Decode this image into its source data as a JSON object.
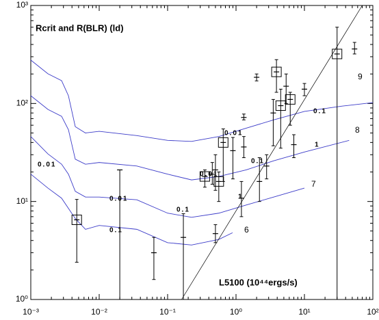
{
  "chart_data": {
    "type": "scatter",
    "title": "Rcrit and R(BLR) (ld)",
    "xlabel": "L5100  (10⁴⁴ergs/s)",
    "log_x": true,
    "log_y": true,
    "xlim": [
      0.001,
      100
    ],
    "ylim": [
      1,
      1000
    ],
    "xticks": [
      {
        "value": 0.001,
        "label": "10⁻³"
      },
      {
        "value": 0.01,
        "label": "10⁻²"
      },
      {
        "value": 0.1,
        "label": "10⁻¹"
      },
      {
        "value": 1,
        "label": "10⁰"
      },
      {
        "value": 10,
        "label": "10¹"
      },
      {
        "value": 100,
        "label": "10²"
      }
    ],
    "yticks": [
      {
        "value": 1,
        "label": "10⁰"
      },
      {
        "value": 10,
        "label": "10¹"
      },
      {
        "value": 100,
        "label": "10²"
      },
      {
        "value": 1000,
        "label": "10³"
      }
    ],
    "points": {
      "x": [
        0.0047,
        0.02,
        0.063,
        0.17,
        0.5,
        0.35,
        0.45,
        0.56,
        0.65,
        0.5,
        0.9,
        1.3,
        1.2,
        1.3,
        2.2,
        2.8,
        3.5,
        2,
        3.9,
        4.5,
        5.4,
        6.2,
        10,
        7,
        30,
        54
      ],
      "y": [
        6.5,
        21,
        3.0,
        4.3,
        4.7,
        18,
        19,
        16,
        40,
        21,
        33,
        36,
        10.8,
        72,
        16,
        23,
        80,
        185,
        210,
        95,
        150,
        110,
        140,
        38,
        320,
        360
      ],
      "y_low": [
        2.4,
        1,
        1.6,
        1,
        3.8,
        14,
        15,
        10,
        16,
        13,
        17,
        28,
        7,
        68,
        10,
        17,
        37,
        170,
        130,
        35,
        100,
        60,
        120,
        28,
        1,
        320
      ],
      "y_high": [
        10.5,
        21,
        4.3,
        7.5,
        5.8,
        21,
        25,
        20,
        55,
        30,
        45,
        46,
        16,
        78,
        28,
        30,
        110,
        200,
        280,
        140,
        200,
        130,
        160,
        48,
        600,
        420
      ],
      "boxed": [
        true,
        false,
        false,
        false,
        false,
        true,
        false,
        true,
        true,
        false,
        false,
        false,
        false,
        false,
        false,
        false,
        false,
        false,
        true,
        true,
        false,
        true,
        false,
        false,
        true,
        false
      ],
      "color": "#000000"
    },
    "reference_line": {
      "x": [
        0.16,
        70
      ],
      "y": [
        1,
        1000
      ],
      "color": "#000000"
    },
    "curves": [
      {
        "name": "9",
        "color": "#3a3ac8",
        "x": [
          0.001,
          0.00178,
          0.00282,
          0.00355,
          0.00447,
          0.0063,
          0.01,
          0.0355,
          0.1,
          0.224,
          0.56,
          1.41,
          3.55,
          10,
          35.5,
          100
        ],
        "y": [
          277,
          201,
          171,
          120,
          58,
          50,
          52,
          47,
          42,
          41,
          46,
          56,
          68,
          83,
          94,
          102
        ]
      },
      {
        "name": "8",
        "color": "#3a3ac8",
        "x": [
          0.001,
          0.00178,
          0.00282,
          0.00355,
          0.00447,
          0.0063,
          0.01,
          0.0355,
          0.1,
          0.224,
          0.56,
          1.41,
          3.55,
          10,
          45
        ],
        "y": [
          120,
          87,
          74,
          54,
          27,
          24,
          25,
          23,
          19,
          16.6,
          18,
          21,
          26,
          32,
          42
        ]
      },
      {
        "name": "7",
        "color": "#3a3ac8",
        "x": [
          0.001,
          0.00178,
          0.00282,
          0.00355,
          0.00447,
          0.0063,
          0.01,
          0.0355,
          0.1,
          0.224,
          0.56,
          1.41,
          3.55,
          10
        ],
        "y": [
          46,
          30.6,
          24,
          19,
          12.7,
          11.1,
          11.1,
          10.4,
          7.6,
          6.9,
          7.6,
          9.2,
          11.1,
          13.7
        ]
      },
      {
        "name": "6",
        "color": "#3a3ac8",
        "x": [
          0.001,
          0.00178,
          0.00282,
          0.00447,
          0.0063,
          0.01,
          0.0355,
          0.1,
          0.224,
          0.56,
          0.89
        ],
        "y": [
          19,
          13.7,
          10.8,
          6.7,
          5.2,
          5.7,
          5.2,
          3.8,
          3.6,
          4.1,
          4.8
        ]
      }
    ],
    "annotations": [
      "0.01",
      "0.01",
      "0.1",
      "0.01",
      "0.01",
      "0.1",
      "0.1",
      "0.1",
      "1",
      "1"
    ]
  }
}
